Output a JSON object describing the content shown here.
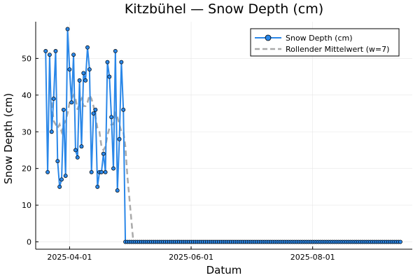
{
  "chart_data": {
    "type": "line",
    "title": "Kitzbühel — Snow Depth (cm)",
    "xlabel": "Datum",
    "ylabel": "Snow Depth (cm)",
    "x_start": "2025-03-20",
    "x_end": "2025-09-15",
    "xlim": [
      "2025-03-15",
      "2025-09-20"
    ],
    "ylim": [
      -2,
      60
    ],
    "x_ticks": [
      "2025-04-01",
      "2025-06-01",
      "2025-08-01"
    ],
    "y_ticks": [
      0,
      10,
      20,
      30,
      40,
      50
    ],
    "grid": true,
    "legend_position": "top-right",
    "series": [
      {
        "name": "Snow Depth (cm)",
        "color": "#2a87e8",
        "style": "line-markers",
        "values": [
          52,
          19,
          51,
          30,
          39,
          52,
          22,
          15,
          17,
          36,
          18,
          58,
          47,
          38,
          51,
          25,
          23,
          44,
          26,
          46,
          44,
          53,
          47,
          19,
          35,
          36,
          15,
          19,
          19,
          24,
          19,
          49,
          45,
          34,
          20,
          52,
          14,
          28,
          49,
          36,
          0,
          0,
          0,
          0,
          0,
          0,
          0,
          0,
          0,
          0,
          0,
          0,
          0,
          0,
          0,
          0,
          0,
          0,
          0,
          0,
          0,
          0,
          0,
          0,
          0,
          0,
          0,
          0,
          0,
          0,
          0,
          0,
          0,
          0,
          0,
          0,
          0,
          0,
          0,
          0,
          0,
          0,
          0,
          0,
          0,
          0,
          0,
          0,
          0,
          0,
          0,
          0,
          0,
          0,
          0,
          0,
          0,
          0,
          0,
          0,
          0,
          0,
          0,
          0,
          0,
          0,
          0,
          0,
          0,
          0,
          0,
          0,
          0,
          0,
          0,
          0,
          0,
          0,
          0,
          0,
          0,
          0,
          0,
          0,
          0,
          0,
          0,
          0,
          0,
          0,
          0,
          0,
          0,
          0,
          0,
          0,
          0,
          0,
          0,
          0,
          0,
          0,
          0,
          0,
          0,
          0,
          0,
          0,
          0,
          0,
          0,
          0,
          0,
          0,
          0,
          0,
          0,
          0,
          0,
          0,
          0,
          0,
          0,
          0,
          0,
          0,
          0,
          0,
          0,
          0,
          0,
          0,
          0,
          0,
          0,
          0,
          0,
          0,
          0
        ]
      },
      {
        "name": "Rollender Mittelwert (w=7)",
        "color": "#aaaaaa",
        "style": "dashed",
        "values": [
          null,
          null,
          null,
          38,
          33,
          32,
          31,
          32,
          30,
          32,
          33,
          35,
          38,
          39,
          40,
          39,
          36,
          38,
          39,
          37,
          37,
          38,
          40,
          39,
          37,
          34,
          31,
          30,
          26,
          25,
          26,
          29,
          31,
          32,
          32,
          35,
          34,
          32,
          30,
          30,
          26,
          18,
          12,
          6,
          0,
          0,
          0,
          0,
          0,
          0,
          0,
          0,
          0,
          0,
          0,
          0,
          0,
          0,
          0,
          0,
          0,
          0,
          0,
          0,
          0,
          0,
          0,
          0,
          0,
          0,
          0,
          0,
          0,
          0,
          0,
          0,
          0,
          0,
          0,
          0,
          0,
          0,
          0,
          0,
          0,
          0,
          0,
          0,
          0,
          0,
          0,
          0,
          0,
          0,
          0,
          0,
          0,
          0,
          0,
          0,
          0,
          0,
          0,
          0,
          0,
          0,
          0,
          0,
          0,
          0,
          0,
          0,
          0,
          0,
          0,
          0,
          0,
          0,
          0,
          0,
          0,
          0,
          0,
          0,
          0,
          0,
          0,
          0,
          0,
          0,
          0,
          0,
          0,
          0,
          0,
          0,
          0,
          0,
          0,
          0,
          0,
          0,
          0,
          0,
          0,
          0,
          0,
          0,
          0,
          0,
          0,
          0,
          0,
          0,
          0,
          0,
          0,
          0,
          0,
          0,
          0,
          0,
          0,
          0,
          0,
          0,
          0,
          0,
          0,
          0,
          0,
          0,
          0,
          0,
          0,
          0,
          0,
          0,
          0
        ]
      }
    ]
  }
}
